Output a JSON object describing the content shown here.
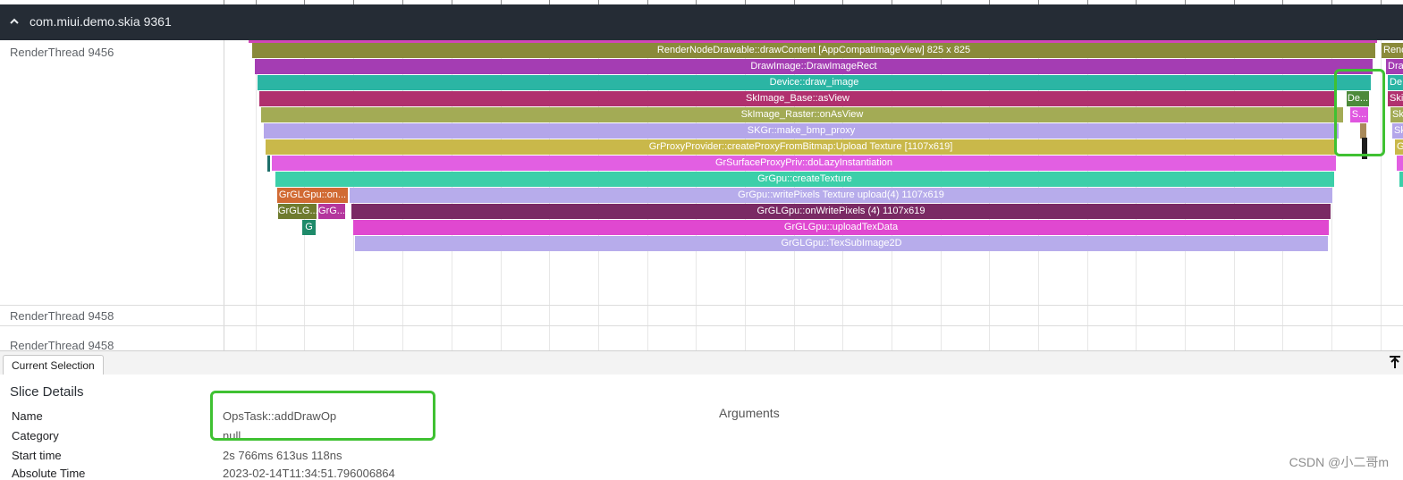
{
  "process_header": {
    "title": "com.miui.demo.skia 9361",
    "chevron_icon": "chevron-up-icon"
  },
  "threads": [
    {
      "label": "RenderThread 9456"
    },
    {
      "label": "RenderThread 9458"
    },
    {
      "label": "RenderThread 9458"
    }
  ],
  "slices": {
    "main": [
      {
        "label": "RenderNodeDrawable::drawContent [AppCompatImageView] 825 x 825",
        "color": "#8a8a3a"
      },
      {
        "label": "DrawImage::DrawImageRect",
        "color": "#a43db3"
      },
      {
        "label": "Device::draw_image",
        "color": "#2bb5a4"
      },
      {
        "label": "SkImage_Base::asView",
        "color": "#b0306e"
      },
      {
        "label": "SkImage_Raster::onAsView",
        "color": "#a3ab55"
      },
      {
        "label": "SKGr::make_bmp_proxy",
        "color": "#b4a6ea"
      },
      {
        "label": "GrProxyProvider::createProxyFromBitmap:Upload Texture [1107x619]",
        "color": "#c9b84a"
      },
      {
        "label": "GrSurfaceProxyPriv::doLazyInstantiation",
        "color": "#e25fe2"
      },
      {
        "label": "GrGpu::createTexture",
        "color": "#3ccfa9"
      },
      {
        "label": "GrGpu::writePixels Texture upload(4) 1107x619",
        "color": "#b7aceb"
      },
      {
        "label": "GrGLGpu::onWritePixels (4) 1107x619",
        "color": "#7a2a64"
      },
      {
        "label": "GrGLGpu::uploadTexData",
        "color": "#e048d0"
      },
      {
        "label": "GrGLGpu::TexSubImage2D",
        "color": "#b7aceb"
      }
    ],
    "small": [
      {
        "label": "GrGLGpu::on...",
        "color": "#d16a33"
      },
      {
        "label": "GrGLG...",
        "color": "#6f7b2e"
      },
      {
        "label": "GrG...",
        "color": "#b4369d"
      },
      {
        "label": "G",
        "color": "#1e8a6a"
      },
      {
        "label": "De...",
        "color": "#4c8a3a"
      },
      {
        "label": "S...",
        "color": "#e056e0"
      }
    ],
    "right_edge": [
      {
        "label": "Rend",
        "color": "#8a8a3a"
      },
      {
        "label": "Dra",
        "color": "#a43db3"
      },
      {
        "label": "De",
        "color": "#2bb5a4"
      },
      {
        "label": "Ski",
        "color": "#b0306e"
      },
      {
        "label": "Sk",
        "color": "#a3ab55"
      },
      {
        "label": "Sk",
        "color": "#b4a6ea"
      },
      {
        "label": "G",
        "color": "#c9b84a"
      }
    ]
  },
  "panel": {
    "tab_label": "Current Selection",
    "pin_icon": "pin-top-icon",
    "details_title": "Slice Details",
    "rows": [
      {
        "label": "Name",
        "value": "OpsTask::addDrawOp"
      },
      {
        "label": "Category",
        "value": "null"
      },
      {
        "label": "Start time",
        "value": "2s 766ms 613us 118ns"
      },
      {
        "label": "Absolute Time",
        "value": "2023-02-14T11:34:51.796006864"
      }
    ],
    "arguments_title": "Arguments"
  },
  "watermark": "CSDN @小二哥m",
  "highlight_color": "#3fc132"
}
